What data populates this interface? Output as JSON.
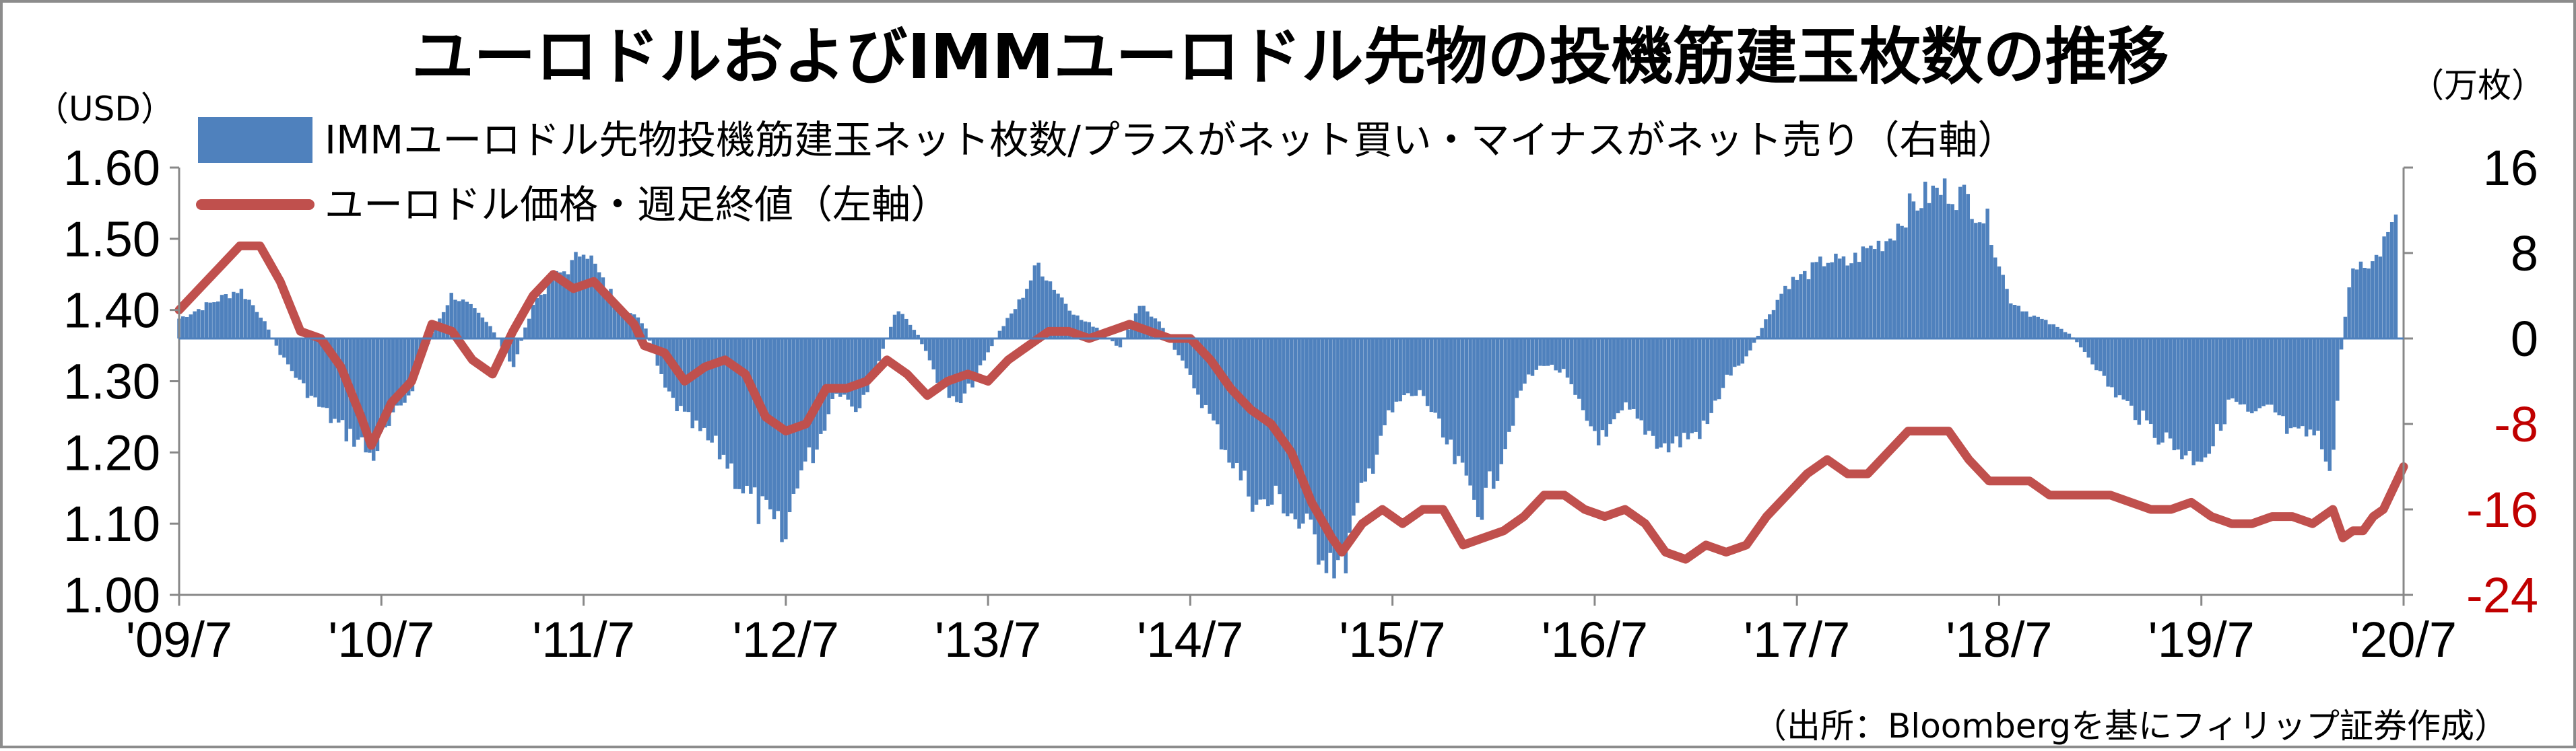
{
  "title": "ユーロドルおよびIMMユーロドル先物の投機筋建玉枚数の推移",
  "source": "（出所：Bloombergを基にフィリップ証券作成）",
  "chart_data": {
    "type": "bar+line",
    "left_axis": {
      "unit": "（USD）",
      "ticks": [
        "1.00",
        "1.10",
        "1.20",
        "1.30",
        "1.40",
        "1.50",
        "1.60"
      ],
      "ylim": [
        1.0,
        1.6
      ]
    },
    "right_axis": {
      "unit": "（万枚）",
      "ticks": [
        "-24",
        "-16",
        "-8",
        "0",
        "8",
        "16"
      ],
      "ylim": [
        -24,
        16
      ]
    },
    "x_ticks": [
      "'09/7",
      "'10/7",
      "'11/7",
      "'12/7",
      "'13/7",
      "'14/7",
      "'15/7",
      "'16/7",
      "'17/7",
      "'18/7",
      "'19/7",
      "'20/7"
    ],
    "x_range": [
      2009.5,
      2020.5
    ],
    "colors": {
      "bars": "#4f81bd",
      "line": "#c0504d",
      "neg_tick": "#c00000"
    },
    "series": [
      {
        "name": "IMMユーロドル先物投機筋建玉ネット枚数/プラスがネット買い・マイナスがネット売り（右軸）",
        "axis": "right",
        "kind": "bar",
        "points": [
          [
            2009.5,
            2.0
          ],
          [
            2009.65,
            3.5
          ],
          [
            2009.8,
            5.0
          ],
          [
            2009.9,
            2.5
          ],
          [
            2010.0,
            -1.5
          ],
          [
            2010.1,
            -4.5
          ],
          [
            2010.2,
            -7.0
          ],
          [
            2010.3,
            -9.0
          ],
          [
            2010.4,
            -10.5
          ],
          [
            2010.45,
            -12.0
          ],
          [
            2010.55,
            -8.5
          ],
          [
            2010.65,
            -5.0
          ],
          [
            2010.75,
            0.5
          ],
          [
            2010.85,
            4.5
          ],
          [
            2010.95,
            3.0
          ],
          [
            2011.05,
            1.0
          ],
          [
            2011.15,
            -3.0
          ],
          [
            2011.25,
            3.5
          ],
          [
            2011.35,
            6.0
          ],
          [
            2011.45,
            7.5
          ],
          [
            2011.5,
            9.5
          ],
          [
            2011.6,
            5.5
          ],
          [
            2011.7,
            3.0
          ],
          [
            2011.8,
            1.5
          ],
          [
            2011.9,
            -5.0
          ],
          [
            2012.0,
            -8.0
          ],
          [
            2012.1,
            -10.0
          ],
          [
            2012.2,
            -12.0
          ],
          [
            2012.3,
            -15.5
          ],
          [
            2012.4,
            -18.0
          ],
          [
            2012.5,
            -20.5
          ],
          [
            2012.55,
            -14.0
          ],
          [
            2012.65,
            -11.0
          ],
          [
            2012.75,
            -5.0
          ],
          [
            2012.85,
            -7.0
          ],
          [
            2012.95,
            -3.0
          ],
          [
            2013.05,
            3.0
          ],
          [
            2013.15,
            0.5
          ],
          [
            2013.25,
            -4.0
          ],
          [
            2013.35,
            -7.0
          ],
          [
            2013.45,
            -3.5
          ],
          [
            2013.55,
            0.5
          ],
          [
            2013.65,
            3.5
          ],
          [
            2013.75,
            7.5
          ],
          [
            2013.85,
            4.5
          ],
          [
            2013.95,
            2.0
          ],
          [
            2014.05,
            1.0
          ],
          [
            2014.15,
            -1.0
          ],
          [
            2014.25,
            3.5
          ],
          [
            2014.35,
            1.5
          ],
          [
            2014.45,
            -2.0
          ],
          [
            2014.55,
            -6.0
          ],
          [
            2014.65,
            -10.0
          ],
          [
            2014.75,
            -14.0
          ],
          [
            2014.85,
            -17.0
          ],
          [
            2014.95,
            -16.0
          ],
          [
            2015.05,
            -19.0
          ],
          [
            2015.15,
            -21.0
          ],
          [
            2015.25,
            -23.0
          ],
          [
            2015.35,
            -16.0
          ],
          [
            2015.45,
            -9.0
          ],
          [
            2015.55,
            -6.0
          ],
          [
            2015.65,
            -5.5
          ],
          [
            2015.75,
            -10.0
          ],
          [
            2015.85,
            -14.0
          ],
          [
            2015.95,
            -17.0
          ],
          [
            2016.05,
            -11.0
          ],
          [
            2016.15,
            -4.5
          ],
          [
            2016.25,
            -2.5
          ],
          [
            2016.35,
            -3.5
          ],
          [
            2016.45,
            -8.0
          ],
          [
            2016.55,
            -10.5
          ],
          [
            2016.65,
            -7.0
          ],
          [
            2016.75,
            -9.0
          ],
          [
            2016.85,
            -11.0
          ],
          [
            2016.95,
            -10.0
          ],
          [
            2017.05,
            -9.0
          ],
          [
            2017.15,
            -4.0
          ],
          [
            2017.25,
            -2.0
          ],
          [
            2017.35,
            2.0
          ],
          [
            2017.45,
            5.5
          ],
          [
            2017.55,
            6.5
          ],
          [
            2017.65,
            8.0
          ],
          [
            2017.75,
            7.5
          ],
          [
            2017.85,
            9.0
          ],
          [
            2017.95,
            10.0
          ],
          [
            2018.05,
            13.0
          ],
          [
            2018.15,
            14.5
          ],
          [
            2018.25,
            15.0
          ],
          [
            2018.35,
            14.0
          ],
          [
            2018.45,
            11.5
          ],
          [
            2018.55,
            4.0
          ],
          [
            2018.65,
            2.5
          ],
          [
            2018.75,
            1.5
          ],
          [
            2018.85,
            0.5
          ],
          [
            2018.95,
            -2.0
          ],
          [
            2019.05,
            -5.0
          ],
          [
            2019.15,
            -7.0
          ],
          [
            2019.25,
            -9.0
          ],
          [
            2019.35,
            -10.5
          ],
          [
            2019.45,
            -12.0
          ],
          [
            2019.55,
            -11.0
          ],
          [
            2019.65,
            -6.0
          ],
          [
            2019.75,
            -8.0
          ],
          [
            2019.85,
            -7.0
          ],
          [
            2019.95,
            -10.0
          ],
          [
            2020.05,
            -9.5
          ],
          [
            2020.15,
            -12.5
          ],
          [
            2020.2,
            1.0
          ],
          [
            2020.25,
            7.0
          ],
          [
            2020.3,
            8.0
          ],
          [
            2020.35,
            7.5
          ],
          [
            2020.4,
            9.5
          ],
          [
            2020.45,
            11.0
          ],
          [
            2020.48,
            16.0
          ]
        ]
      },
      {
        "name": "ユーロドル価格・週足終値（左軸）",
        "axis": "left",
        "kind": "line",
        "points": [
          [
            2009.5,
            1.4
          ],
          [
            2009.6,
            1.43
          ],
          [
            2009.7,
            1.46
          ],
          [
            2009.8,
            1.49
          ],
          [
            2009.9,
            1.49
          ],
          [
            2010.0,
            1.44
          ],
          [
            2010.1,
            1.37
          ],
          [
            2010.2,
            1.36
          ],
          [
            2010.3,
            1.32
          ],
          [
            2010.4,
            1.25
          ],
          [
            2010.45,
            1.21
          ],
          [
            2010.55,
            1.27
          ],
          [
            2010.65,
            1.3
          ],
          [
            2010.75,
            1.38
          ],
          [
            2010.85,
            1.37
          ],
          [
            2010.95,
            1.33
          ],
          [
            2011.05,
            1.31
          ],
          [
            2011.15,
            1.37
          ],
          [
            2011.25,
            1.42
          ],
          [
            2011.35,
            1.45
          ],
          [
            2011.45,
            1.43
          ],
          [
            2011.55,
            1.44
          ],
          [
            2011.65,
            1.41
          ],
          [
            2011.75,
            1.38
          ],
          [
            2011.8,
            1.35
          ],
          [
            2011.9,
            1.34
          ],
          [
            2012.0,
            1.3
          ],
          [
            2012.1,
            1.32
          ],
          [
            2012.2,
            1.33
          ],
          [
            2012.3,
            1.31
          ],
          [
            2012.4,
            1.25
          ],
          [
            2012.5,
            1.23
          ],
          [
            2012.6,
            1.24
          ],
          [
            2012.7,
            1.29
          ],
          [
            2012.8,
            1.29
          ],
          [
            2012.9,
            1.3
          ],
          [
            2013.0,
            1.33
          ],
          [
            2013.1,
            1.31
          ],
          [
            2013.2,
            1.28
          ],
          [
            2013.3,
            1.3
          ],
          [
            2013.4,
            1.31
          ],
          [
            2013.5,
            1.3
          ],
          [
            2013.6,
            1.33
          ],
          [
            2013.7,
            1.35
          ],
          [
            2013.8,
            1.37
          ],
          [
            2013.9,
            1.37
          ],
          [
            2014.0,
            1.36
          ],
          [
            2014.1,
            1.37
          ],
          [
            2014.2,
            1.38
          ],
          [
            2014.3,
            1.37
          ],
          [
            2014.4,
            1.36
          ],
          [
            2014.5,
            1.36
          ],
          [
            2014.6,
            1.33
          ],
          [
            2014.7,
            1.29
          ],
          [
            2014.8,
            1.26
          ],
          [
            2014.9,
            1.24
          ],
          [
            2015.0,
            1.2
          ],
          [
            2015.1,
            1.13
          ],
          [
            2015.2,
            1.08
          ],
          [
            2015.25,
            1.06
          ],
          [
            2015.35,
            1.1
          ],
          [
            2015.45,
            1.12
          ],
          [
            2015.55,
            1.1
          ],
          [
            2015.65,
            1.12
          ],
          [
            2015.75,
            1.12
          ],
          [
            2015.85,
            1.07
          ],
          [
            2015.95,
            1.08
          ],
          [
            2016.05,
            1.09
          ],
          [
            2016.15,
            1.11
          ],
          [
            2016.25,
            1.14
          ],
          [
            2016.35,
            1.14
          ],
          [
            2016.45,
            1.12
          ],
          [
            2016.55,
            1.11
          ],
          [
            2016.65,
            1.12
          ],
          [
            2016.75,
            1.1
          ],
          [
            2016.85,
            1.06
          ],
          [
            2016.95,
            1.05
          ],
          [
            2017.05,
            1.07
          ],
          [
            2017.15,
            1.06
          ],
          [
            2017.25,
            1.07
          ],
          [
            2017.35,
            1.11
          ],
          [
            2017.45,
            1.14
          ],
          [
            2017.55,
            1.17
          ],
          [
            2017.65,
            1.19
          ],
          [
            2017.75,
            1.17
          ],
          [
            2017.85,
            1.17
          ],
          [
            2017.95,
            1.2
          ],
          [
            2018.05,
            1.23
          ],
          [
            2018.15,
            1.23
          ],
          [
            2018.25,
            1.23
          ],
          [
            2018.35,
            1.19
          ],
          [
            2018.45,
            1.16
          ],
          [
            2018.55,
            1.16
          ],
          [
            2018.65,
            1.16
          ],
          [
            2018.75,
            1.14
          ],
          [
            2018.85,
            1.14
          ],
          [
            2018.95,
            1.14
          ],
          [
            2019.05,
            1.14
          ],
          [
            2019.15,
            1.13
          ],
          [
            2019.25,
            1.12
          ],
          [
            2019.35,
            1.12
          ],
          [
            2019.45,
            1.13
          ],
          [
            2019.55,
            1.11
          ],
          [
            2019.65,
            1.1
          ],
          [
            2019.75,
            1.1
          ],
          [
            2019.85,
            1.11
          ],
          [
            2019.95,
            1.11
          ],
          [
            2020.05,
            1.1
          ],
          [
            2020.15,
            1.12
          ],
          [
            2020.2,
            1.08
          ],
          [
            2020.25,
            1.09
          ],
          [
            2020.3,
            1.09
          ],
          [
            2020.35,
            1.11
          ],
          [
            2020.4,
            1.12
          ],
          [
            2020.45,
            1.15
          ],
          [
            2020.5,
            1.18
          ]
        ]
      }
    ]
  }
}
